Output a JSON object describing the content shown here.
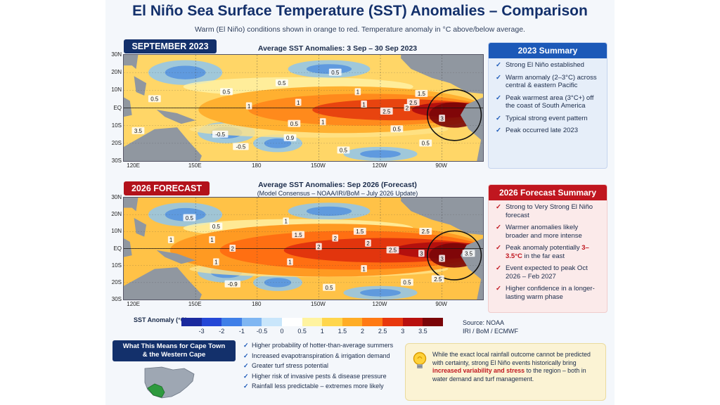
{
  "title": "El Niño Sea Surface Temperature (SST) Anomalies – Comparison",
  "subtitle": "Warm (El Niño) conditions shown in orange to red. Temperature anomaly in °C above/below average.",
  "map1": {
    "badge": "SEPTEMBER 2023",
    "caption": "Average SST Anomalies: 3 Sep – 30 Sep 2023",
    "contour_labels": [
      {
        "text": "0.5",
        "lon": 165,
        "lat": 9
      },
      {
        "text": "0.5",
        "lon": 192,
        "lat": 14
      },
      {
        "text": "0.5",
        "lon": 218,
        "lat": 20
      },
      {
        "text": "1",
        "lon": 176,
        "lat": 1
      },
      {
        "text": "1",
        "lon": 200,
        "lat": 3
      },
      {
        "text": "1",
        "lon": 229,
        "lat": 9
      },
      {
        "text": "1",
        "lon": 232,
        "lat": 2
      },
      {
        "text": "1.5",
        "lon": 260,
        "lat": 8
      },
      {
        "text": "2",
        "lon": 253,
        "lat": 0
      },
      {
        "text": "2.5",
        "lon": 243,
        "lat": -2
      },
      {
        "text": "2.5",
        "lon": 256,
        "lat": 3
      },
      {
        "text": "3",
        "lon": 270,
        "lat": -6
      },
      {
        "text": "0.5",
        "lon": 248,
        "lat": -12
      },
      {
        "text": "1",
        "lon": 212,
        "lat": -8
      },
      {
        "text": "0.5",
        "lon": 198,
        "lat": -9
      },
      {
        "text": "0.5",
        "lon": 130,
        "lat": 5
      },
      {
        "text": "0.9",
        "lon": 196,
        "lat": -17
      },
      {
        "text": "0.5",
        "lon": 222,
        "lat": -24
      },
      {
        "text": "-0.5",
        "lon": 162,
        "lat": -15
      },
      {
        "text": "-0.5",
        "lon": 172,
        "lat": -22
      },
      {
        "text": "0.5",
        "lon": 262,
        "lat": -20
      },
      {
        "text": "3.5",
        "lon": 122,
        "lat": -13
      }
    ]
  },
  "map2": {
    "badge": "2026 FORECAST",
    "caption": "Average SST Anomalies: Sep 2026 (Forecast)",
    "caption_sub": "(Model Consensus – NOAA/IRI/BoM – July 2026 Update)",
    "contour_labels": [
      {
        "text": "0.5",
        "lon": 147,
        "lat": 18
      },
      {
        "text": "0.5",
        "lon": 160,
        "lat": 13
      },
      {
        "text": "1",
        "lon": 158,
        "lat": 5
      },
      {
        "text": "1",
        "lon": 194,
        "lat": 16
      },
      {
        "text": "1.5",
        "lon": 200,
        "lat": 8
      },
      {
        "text": "1.5",
        "lon": 230,
        "lat": 10
      },
      {
        "text": "2",
        "lon": 168,
        "lat": 0
      },
      {
        "text": "2",
        "lon": 218,
        "lat": 6
      },
      {
        "text": "2",
        "lon": 210,
        "lat": 1
      },
      {
        "text": "2",
        "lon": 234,
        "lat": 3
      },
      {
        "text": "2.5",
        "lon": 262,
        "lat": 10
      },
      {
        "text": "2.5",
        "lon": 246,
        "lat": -1
      },
      {
        "text": "3",
        "lon": 260,
        "lat": -3
      },
      {
        "text": "3",
        "lon": 270,
        "lat": -6
      },
      {
        "text": "3.5",
        "lon": 283,
        "lat": -3
      },
      {
        "text": "1",
        "lon": 196,
        "lat": -8
      },
      {
        "text": "1",
        "lon": 232,
        "lat": -12
      },
      {
        "text": "1",
        "lon": 160,
        "lat": -8
      },
      {
        "text": "1",
        "lon": 138,
        "lat": 5
      },
      {
        "text": "0.5",
        "lon": 215,
        "lat": -23
      },
      {
        "text": "0.5",
        "lon": 253,
        "lat": -20
      },
      {
        "text": "2.5",
        "lon": 268,
        "lat": -18
      },
      {
        "text": "-0.9",
        "lon": 168,
        "lat": -21
      }
    ]
  },
  "axes": {
    "lat_ticks": [
      "30N",
      "20N",
      "10N",
      "EQ",
      "10S",
      "20S",
      "30S"
    ],
    "lon_ticks": [
      "120E",
      "150E",
      "180",
      "150W",
      "120W",
      "90W"
    ]
  },
  "summary_2023": {
    "heading": "2023 Summary",
    "items": [
      "Strong El Niño established",
      "Warm anomaly (2–3°C) across central & eastern Pacific",
      "Peak warmest area (3°C+) off the coast of South America",
      "Typical strong event pattern",
      "Peak occurred late 2023"
    ]
  },
  "summary_2026": {
    "heading": "2026 Forecast Summary",
    "items": [
      {
        "text": "Strong to Very Strong El Niño forecast"
      },
      {
        "text": "Warmer anomalies likely broader and more intense"
      },
      {
        "text": "Peak anomaly potentially ",
        "highlight": "3–3.5°C",
        "after": " in the far east"
      },
      {
        "text": "Event expected to peak Oct 2026 – Feb 2027"
      },
      {
        "text": "Higher confidence in a longer-lasting warm phase"
      }
    ]
  },
  "colorbar": {
    "label": "SST Anomaly (°C)",
    "ticks": [
      "-3",
      "-2",
      "-1",
      "-0.5",
      "0",
      "0.5",
      "1",
      "1.5",
      "2",
      "2.5",
      "3",
      "3.5"
    ],
    "colors": [
      "#1a2a9e",
      "#2447d6",
      "#3f7fe8",
      "#7fb6f2",
      "#c9e6fb",
      "#ffffff",
      "#fff3a0",
      "#ffd64d",
      "#ffad26",
      "#ff7a14",
      "#e8380d",
      "#b8100e",
      "#7a0508"
    ]
  },
  "source": {
    "line1": "Source: NOAA",
    "line2": "IRI / BoM / ECMWF"
  },
  "impacts": {
    "heading_line1": "What This Means for Cape Town",
    "heading_line2": "& the Western Cape",
    "items": [
      "Higher probability of hotter-than-average summers",
      "Increased evapotranspiration & irrigation demand",
      "Greater turf stress potential",
      "Higher risk of invasive pests & disease pressure",
      "Rainfall less predictable – extremes more likely"
    ]
  },
  "note": {
    "before": "While the exact local rainfall outcome cannot be predicted with certainty, strong El Niño events historically bring ",
    "highlight": "increased variability and stress",
    "after": " to the region – both in water demand and turf management."
  },
  "icons": {
    "bulb": "lightbulb-icon",
    "check": "check-icon",
    "africa": "south-africa-map-icon"
  }
}
